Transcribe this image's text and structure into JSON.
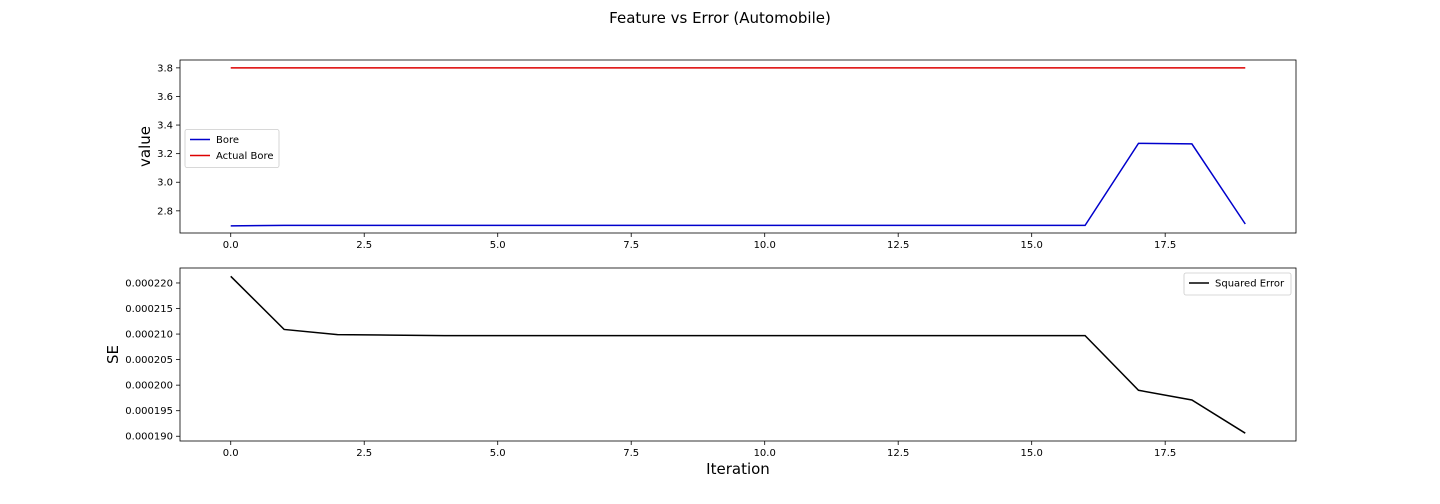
{
  "chart_data": {
    "title": "Feature vs Error (Automobile)",
    "panels": [
      {
        "type": "line",
        "ylabel": "value",
        "xlabel": "",
        "xlim": [
          -0.95,
          19.95
        ],
        "ylim": [
          2.645,
          3.855
        ],
        "xticks": [
          0,
          2.5,
          5,
          7.5,
          10,
          12.5,
          15,
          17.5
        ],
        "xtick_labels": [
          "0.0",
          "2.5",
          "5.0",
          "7.5",
          "10.0",
          "12.5",
          "15.0",
          "17.5"
        ],
        "yticks": [
          2.8,
          3.0,
          3.2,
          3.4,
          3.6,
          3.8
        ],
        "ytick_labels": [
          "2.8",
          "3.0",
          "3.2",
          "3.4",
          "3.6",
          "3.8"
        ],
        "legend_position": "center-left",
        "series": [
          {
            "name": "Bore",
            "color": "#0000cc",
            "x": [
              0,
              1,
              2,
              3,
              4,
              5,
              6,
              7,
              8,
              9,
              10,
              11,
              12,
              13,
              14,
              15,
              16,
              17,
              18,
              19
            ],
            "y": [
              2.695,
              2.698,
              2.698,
              2.698,
              2.698,
              2.698,
              2.698,
              2.698,
              2.698,
              2.698,
              2.698,
              2.698,
              2.698,
              2.698,
              2.698,
              2.698,
              2.698,
              3.272,
              3.268,
              2.708
            ]
          },
          {
            "name": "Actual Bore",
            "color": "#dd0000",
            "x": [
              0,
              1,
              2,
              3,
              4,
              5,
              6,
              7,
              8,
              9,
              10,
              11,
              12,
              13,
              14,
              15,
              16,
              17,
              18,
              19
            ],
            "y": [
              3.8,
              3.8,
              3.8,
              3.8,
              3.8,
              3.8,
              3.8,
              3.8,
              3.8,
              3.8,
              3.8,
              3.8,
              3.8,
              3.8,
              3.8,
              3.8,
              3.8,
              3.8,
              3.8,
              3.8
            ]
          }
        ]
      },
      {
        "type": "line",
        "ylabel": "SE",
        "xlabel": "Iteration",
        "xlim": [
          -0.95,
          19.95
        ],
        "ylim": [
          0.00018907,
          0.00022293
        ],
        "xticks": [
          0,
          2.5,
          5,
          7.5,
          10,
          12.5,
          15,
          17.5
        ],
        "xtick_labels": [
          "0.0",
          "2.5",
          "5.0",
          "7.5",
          "10.0",
          "12.5",
          "15.0",
          "17.5"
        ],
        "yticks": [
          0.00019,
          0.000195,
          0.0002,
          0.000205,
          0.00021,
          0.000215,
          0.00022
        ],
        "ytick_labels": [
          "0.000190",
          "0.000195",
          "0.000200",
          "0.000205",
          "0.000210",
          "0.000215",
          "0.000220"
        ],
        "legend_position": "top-right",
        "series": [
          {
            "name": "Squared Error",
            "color": "#000000",
            "x": [
              0,
              1,
              2,
              3,
              4,
              5,
              6,
              7,
              8,
              9,
              10,
              11,
              12,
              13,
              14,
              15,
              16,
              17,
              18,
              19
            ],
            "y": [
              0.0002213,
              0.0002109,
              0.0002099,
              0.0002098,
              0.0002097,
              0.0002097,
              0.0002097,
              0.0002097,
              0.0002097,
              0.0002097,
              0.0002097,
              0.0002097,
              0.0002097,
              0.0002097,
              0.0002097,
              0.0002097,
              0.0002097,
              0.000199,
              0.0001971,
              0.0001906
            ]
          }
        ]
      }
    ]
  }
}
